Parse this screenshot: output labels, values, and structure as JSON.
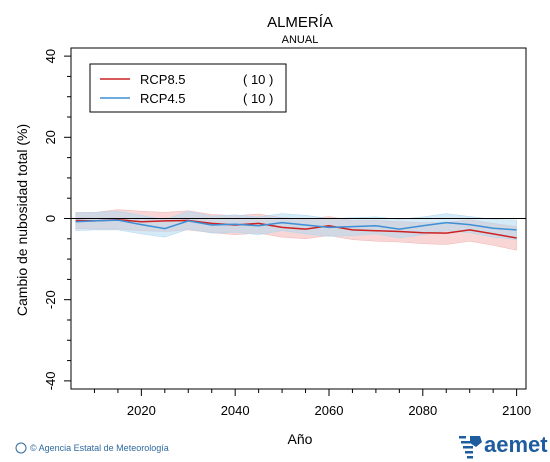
{
  "title": "ALMERÍA",
  "subtitle": "ANUAL",
  "credit": "© Agencia Estatal de Meteorología",
  "brand": "aemet",
  "chart_data": {
    "type": "line",
    "xlabel": "Año",
    "ylabel": "Cambio de nubosidad total (%)",
    "xlim": [
      2005,
      2102
    ],
    "ylim": [
      -42,
      42
    ],
    "xticks": [
      2020,
      2040,
      2060,
      2080,
      2100
    ],
    "xtick_labels": [
      "2020",
      "2040",
      "2060",
      "2080",
      "2100"
    ],
    "yticks": [
      -40,
      -20,
      0,
      20,
      40
    ],
    "ytick_labels": [
      "-40",
      "-20",
      "0",
      "20",
      "40"
    ],
    "reference_line": 0,
    "grid": false,
    "legend_position": "top-left",
    "series": [
      {
        "name": "RCP8.5",
        "count_label": "( 10 )",
        "color": "#cc2222",
        "band_color": "#f2b5b5",
        "x": [
          2006,
          2010,
          2015,
          2020,
          2025,
          2030,
          2035,
          2040,
          2045,
          2050,
          2055,
          2060,
          2065,
          2070,
          2075,
          2080,
          2085,
          2090,
          2095,
          2100
        ],
        "values": [
          -0.5,
          -0.6,
          -0.3,
          -0.8,
          -0.6,
          -0.5,
          -1.2,
          -1.6,
          -1.2,
          -2.2,
          -2.6,
          -1.8,
          -2.8,
          -3.0,
          -3.2,
          -3.5,
          -3.6,
          -2.8,
          -3.8,
          -4.8
        ],
        "lower": [
          -2.5,
          -2.6,
          -2.6,
          -3.0,
          -3.2,
          -2.8,
          -3.5,
          -4.0,
          -3.6,
          -4.6,
          -5.0,
          -4.2,
          -5.2,
          -5.6,
          -5.8,
          -6.2,
          -6.4,
          -5.6,
          -6.6,
          -7.8
        ],
        "upper": [
          1.5,
          1.5,
          2.2,
          1.8,
          1.5,
          1.9,
          1.0,
          0.7,
          1.1,
          0.2,
          -0.2,
          0.5,
          -0.5,
          -0.5,
          -0.8,
          -1.0,
          -1.0,
          -0.3,
          -1.2,
          -2.0
        ]
      },
      {
        "name": "RCP4.5",
        "count_label": "( 10 )",
        "color": "#3d8fd6",
        "band_color": "#b0d8ef",
        "x": [
          2006,
          2010,
          2015,
          2020,
          2025,
          2030,
          2035,
          2040,
          2045,
          2050,
          2055,
          2060,
          2065,
          2070,
          2075,
          2080,
          2085,
          2090,
          2095,
          2100
        ],
        "values": [
          -0.8,
          -0.6,
          -0.4,
          -1.5,
          -2.5,
          -0.6,
          -1.6,
          -1.4,
          -1.8,
          -1.0,
          -1.6,
          -2.2,
          -2.0,
          -1.8,
          -2.6,
          -1.8,
          -1.0,
          -1.5,
          -2.4,
          -2.8
        ],
        "lower": [
          -3.0,
          -2.8,
          -2.8,
          -3.8,
          -4.6,
          -2.6,
          -3.6,
          -3.4,
          -4.0,
          -3.0,
          -3.8,
          -4.4,
          -4.2,
          -3.8,
          -4.8,
          -4.0,
          -3.0,
          -3.5,
          -4.6,
          -5.2
        ],
        "upper": [
          1.4,
          1.5,
          1.8,
          0.8,
          -0.3,
          1.8,
          0.6,
          0.9,
          0.4,
          1.2,
          0.8,
          0.0,
          0.2,
          0.4,
          -0.2,
          0.4,
          1.2,
          0.5,
          -0.2,
          -0.4
        ]
      }
    ]
  }
}
